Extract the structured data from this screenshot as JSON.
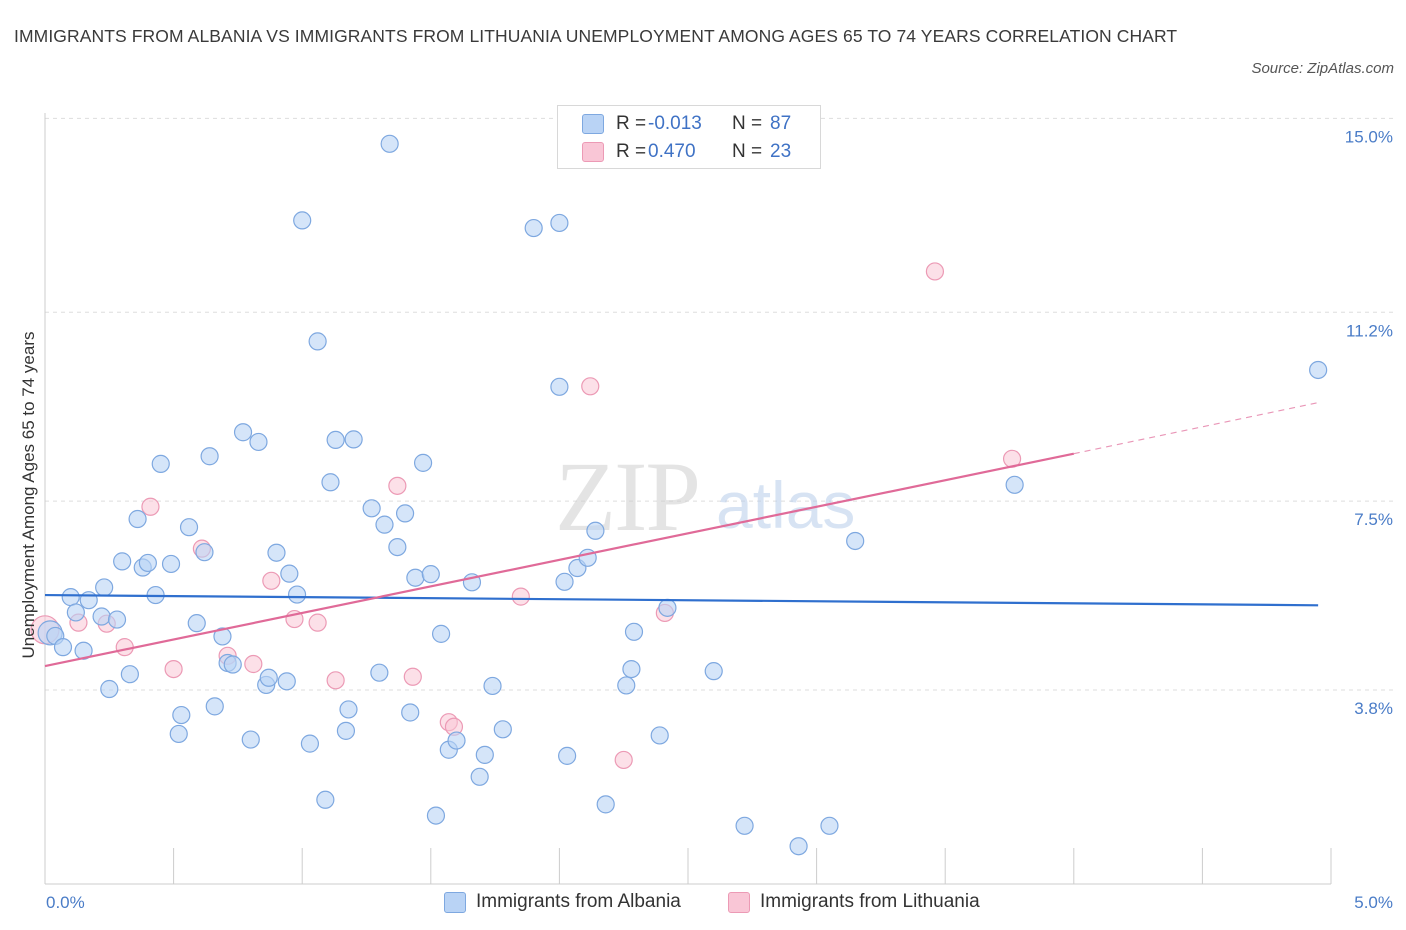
{
  "header": {
    "title": "IMMIGRANTS FROM ALBANIA VS IMMIGRANTS FROM LITHUANIA UNEMPLOYMENT AMONG AGES 65 TO 74 YEARS CORRELATION CHART",
    "source": "Source: ZipAtlas.com"
  },
  "legend": {
    "albania": {
      "r_label": "R =",
      "r_value": "-0.013",
      "n_label": "N =",
      "n_value": "87"
    },
    "lithuania": {
      "r_label": "R =",
      "r_value": "0.470",
      "n_label": "N =",
      "n_value": "23"
    }
  },
  "bottom_legend": {
    "albania": "Immigrants from Albania",
    "lithuania": "Immigrants from Lithuania"
  },
  "colors": {
    "albania_fill": "#b9d3f5",
    "albania_stroke": "#7ea8e0",
    "albania_line": "#2f6fce",
    "lithuania_fill": "#f9c6d6",
    "lithuania_stroke": "#ec9ab5",
    "lithuania_line": "#e06a98",
    "tick_text": "#4a7cc7",
    "grid": "#dddddd"
  },
  "chart_data": {
    "type": "scatter",
    "title": "IMMIGRANTS FROM ALBANIA VS IMMIGRANTS FROM LITHUANIA UNEMPLOYMENT AMONG AGES 65 TO 74 YEARS CORRELATION CHART",
    "xlabel": "",
    "ylabel": "Unemployment Among Ages 65 to 74 years",
    "xlim": [
      0,
      5.0
    ],
    "ylim": [
      0,
      15.3
    ],
    "x_ticks": [
      "0.0%",
      "5.0%"
    ],
    "y_ticks": [
      {
        "value": 3.8,
        "label": "3.8%"
      },
      {
        "value": 7.5,
        "label": "7.5%"
      },
      {
        "value": 11.2,
        "label": "11.2%"
      },
      {
        "value": 15.0,
        "label": "15.0%"
      }
    ],
    "grid": true,
    "watermark": "ZIPatlas",
    "series": [
      {
        "name": "Immigrants from Albania",
        "trend": {
          "x": [
            0.0,
            4.95
          ],
          "y": [
            5.66,
            5.46
          ]
        },
        "points": [
          [
            0.02,
            4.92
          ],
          [
            0.04,
            4.86
          ],
          [
            0.07,
            4.64
          ],
          [
            0.1,
            5.62
          ],
          [
            0.12,
            5.32
          ],
          [
            0.15,
            4.57
          ],
          [
            0.17,
            5.56
          ],
          [
            0.22,
            5.24
          ],
          [
            0.23,
            5.81
          ],
          [
            0.25,
            3.82
          ],
          [
            0.28,
            5.18
          ],
          [
            0.3,
            6.32
          ],
          [
            0.33,
            4.11
          ],
          [
            0.36,
            7.15
          ],
          [
            0.38,
            6.2
          ],
          [
            0.4,
            6.29
          ],
          [
            0.43,
            5.66
          ],
          [
            0.45,
            8.23
          ],
          [
            0.49,
            6.27
          ],
          [
            0.52,
            2.94
          ],
          [
            0.53,
            3.31
          ],
          [
            0.56,
            6.99
          ],
          [
            0.59,
            5.11
          ],
          [
            0.62,
            6.5
          ],
          [
            0.64,
            8.38
          ],
          [
            0.66,
            3.48
          ],
          [
            0.69,
            4.85
          ],
          [
            0.71,
            4.33
          ],
          [
            0.73,
            4.3
          ],
          [
            0.77,
            8.85
          ],
          [
            0.8,
            2.83
          ],
          [
            0.83,
            8.66
          ],
          [
            0.86,
            3.9
          ],
          [
            0.87,
            4.04
          ],
          [
            0.9,
            6.49
          ],
          [
            0.94,
            3.97
          ],
          [
            0.95,
            6.08
          ],
          [
            0.98,
            5.67
          ],
          [
            1.0,
            13.0
          ],
          [
            1.03,
            2.75
          ],
          [
            1.06,
            10.63
          ],
          [
            1.09,
            1.65
          ],
          [
            1.11,
            7.87
          ],
          [
            1.13,
            8.7
          ],
          [
            1.17,
            3.0
          ],
          [
            1.18,
            3.42
          ],
          [
            1.2,
            8.71
          ],
          [
            1.27,
            7.36
          ],
          [
            1.3,
            4.14
          ],
          [
            1.32,
            7.04
          ],
          [
            1.34,
            14.5
          ],
          [
            1.37,
            6.6
          ],
          [
            1.4,
            7.26
          ],
          [
            1.42,
            3.36
          ],
          [
            1.44,
            6.0
          ],
          [
            1.47,
            8.25
          ],
          [
            1.5,
            6.07
          ],
          [
            1.52,
            1.34
          ],
          [
            1.54,
            4.9
          ],
          [
            1.57,
            2.63
          ],
          [
            1.6,
            2.81
          ],
          [
            1.66,
            5.91
          ],
          [
            1.69,
            2.1
          ],
          [
            1.71,
            2.53
          ],
          [
            1.74,
            3.88
          ],
          [
            1.78,
            3.03
          ],
          [
            1.9,
            12.85
          ],
          [
            2.0,
            9.74
          ],
          [
            2.02,
            5.92
          ],
          [
            2.0,
            12.95
          ],
          [
            2.03,
            2.51
          ],
          [
            2.07,
            6.19
          ],
          [
            2.11,
            6.39
          ],
          [
            2.14,
            6.92
          ],
          [
            2.18,
            1.56
          ],
          [
            2.26,
            3.89
          ],
          [
            2.28,
            4.21
          ],
          [
            2.29,
            4.94
          ],
          [
            2.39,
            2.91
          ],
          [
            2.42,
            5.41
          ],
          [
            2.6,
            4.17
          ],
          [
            2.72,
            1.14
          ],
          [
            2.93,
            0.74
          ],
          [
            3.05,
            1.14
          ],
          [
            3.15,
            6.72
          ],
          [
            3.77,
            7.82
          ],
          [
            4.95,
            10.07
          ]
        ]
      },
      {
        "name": "Immigrants from Lithuania",
        "trend": {
          "x": [
            0.0,
            4.0
          ],
          "y": [
            4.27,
            8.43
          ]
        },
        "trend_dashed": {
          "x": [
            4.0,
            4.95
          ],
          "y": [
            8.43,
            9.43
          ]
        },
        "points": [
          [
            0.0,
            4.98
          ],
          [
            0.13,
            5.12
          ],
          [
            0.24,
            5.1
          ],
          [
            0.31,
            4.64
          ],
          [
            0.41,
            7.39
          ],
          [
            0.5,
            4.21
          ],
          [
            0.61,
            6.57
          ],
          [
            0.71,
            4.47
          ],
          [
            0.81,
            4.31
          ],
          [
            0.88,
            5.94
          ],
          [
            0.97,
            5.19
          ],
          [
            1.06,
            5.12
          ],
          [
            1.13,
            3.99
          ],
          [
            1.37,
            7.8
          ],
          [
            1.43,
            4.06
          ],
          [
            1.57,
            3.17
          ],
          [
            1.59,
            3.08
          ],
          [
            1.85,
            5.63
          ],
          [
            2.12,
            9.75
          ],
          [
            2.25,
            2.43
          ],
          [
            2.41,
            5.31
          ],
          [
            3.46,
            12.0
          ],
          [
            3.76,
            8.33
          ]
        ]
      }
    ]
  }
}
